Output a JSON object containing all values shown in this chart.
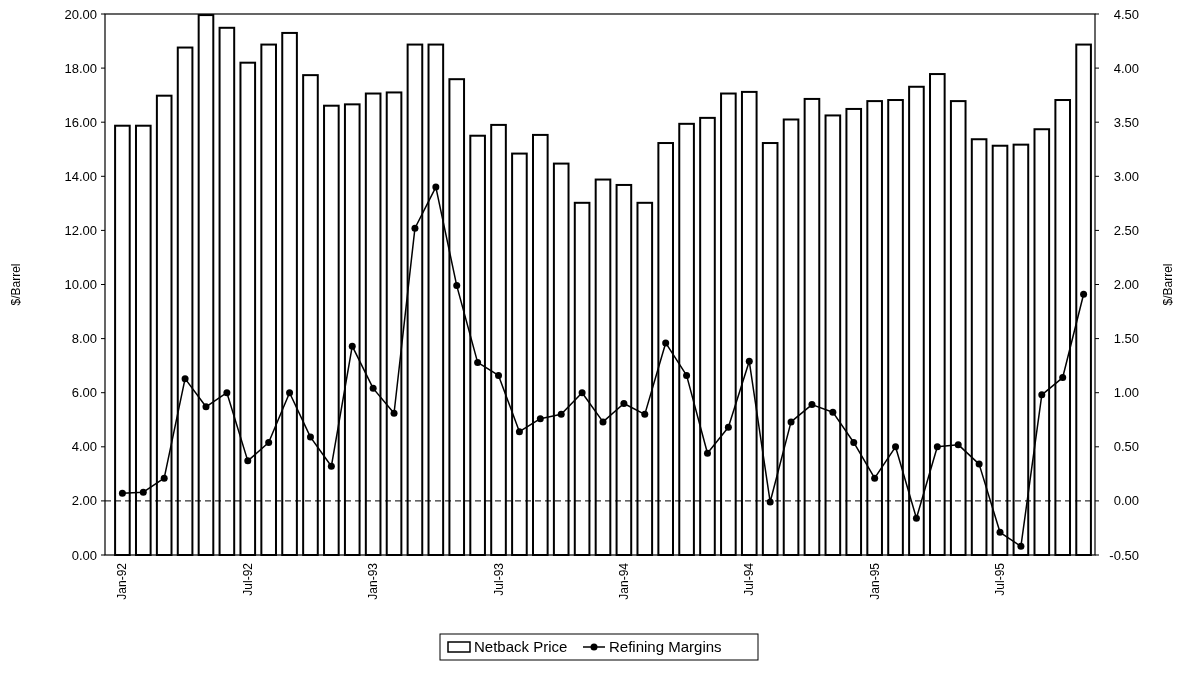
{
  "chart_data": {
    "type": "bar",
    "categories": [
      "Jan-92",
      null,
      null,
      null,
      null,
      null,
      "Jul-92",
      null,
      null,
      null,
      null,
      null,
      "Jan-93",
      null,
      null,
      null,
      null,
      null,
      "Jul-93",
      null,
      null,
      null,
      null,
      null,
      "Jan-94",
      null,
      null,
      null,
      null,
      null,
      "Jul-94",
      null,
      null,
      null,
      null,
      null,
      "Jan-95",
      null,
      null,
      null,
      null,
      null,
      "Jul-95",
      null,
      null,
      null,
      null
    ],
    "series": [
      {
        "name": "Netback Price",
        "color": "#ffffff",
        "values": [
          15.87,
          15.87,
          16.98,
          18.76,
          19.96,
          19.49,
          18.2,
          18.87,
          19.3,
          17.74,
          16.61,
          16.66,
          17.06,
          17.1,
          18.87,
          18.87,
          17.59,
          15.5,
          15.9,
          14.84,
          15.53,
          14.47,
          13.02,
          13.88,
          13.68,
          13.02,
          15.23,
          15.94,
          16.16,
          17.06,
          17.12,
          15.23,
          16.1,
          16.86,
          16.25,
          16.49,
          16.78,
          16.82,
          17.31,
          17.78,
          16.78,
          15.37,
          15.13,
          15.17,
          15.74,
          16.82,
          18.87
        ]
      },
      {
        "name": "Refining Margins",
        "type": "line",
        "axis": "y2",
        "color": "#000000",
        "values": [
          0.07,
          0.08,
          0.21,
          1.13,
          0.87,
          1.0,
          0.37,
          0.54,
          1.0,
          0.59,
          0.32,
          1.43,
          1.04,
          0.81,
          2.52,
          2.9,
          1.99,
          1.28,
          1.16,
          0.64,
          0.76,
          0.8,
          1.0,
          0.73,
          0.9,
          0.8,
          1.46,
          1.16,
          0.44,
          0.68,
          1.29,
          -0.01,
          0.73,
          0.89,
          0.82,
          0.54,
          0.21,
          0.5,
          -0.16,
          0.5,
          0.52,
          0.34,
          -0.29,
          -0.42,
          0.98,
          1.14,
          1.91
        ]
      }
    ],
    "ylabel": "$/Barrel",
    "y2label": "$/Barrel",
    "ylim": [
      0,
      20
    ],
    "yticks": [
      {
        "value": 0,
        "label": "0.00"
      },
      {
        "value": 2,
        "label": "2.00"
      },
      {
        "value": 4,
        "label": "4.00"
      },
      {
        "value": 6,
        "label": "6.00"
      },
      {
        "value": 8,
        "label": "8.00"
      },
      {
        "value": 10,
        "label": "10.00"
      },
      {
        "value": 12,
        "label": "12.00"
      },
      {
        "value": 14,
        "label": "14.00"
      },
      {
        "value": 16,
        "label": "16.00"
      },
      {
        "value": 18,
        "label": "18.00"
      },
      {
        "value": 20,
        "label": "20.00"
      }
    ],
    "y2lim": [
      -0.5,
      4.5
    ],
    "y2ticks": [
      {
        "value": -0.5,
        "label": "-0.50"
      },
      {
        "value": 0,
        "label": "0.00"
      },
      {
        "value": 0.5,
        "label": "0.50"
      },
      {
        "value": 1,
        "label": "1.00"
      },
      {
        "value": 1.5,
        "label": "1.50"
      },
      {
        "value": 2,
        "label": "2.00"
      },
      {
        "value": 2.5,
        "label": "2.50"
      },
      {
        "value": 3,
        "label": "3.00"
      },
      {
        "value": 3.5,
        "label": "3.50"
      },
      {
        "value": 4,
        "label": "4.00"
      },
      {
        "value": 4.5,
        "label": "4.50"
      }
    ],
    "ref_lines": [
      {
        "axis": "y2",
        "value": 0,
        "line_style": "dashed"
      }
    ],
    "marker": "circle",
    "line_style": "solid",
    "legend": "bottom",
    "grid": false
  }
}
